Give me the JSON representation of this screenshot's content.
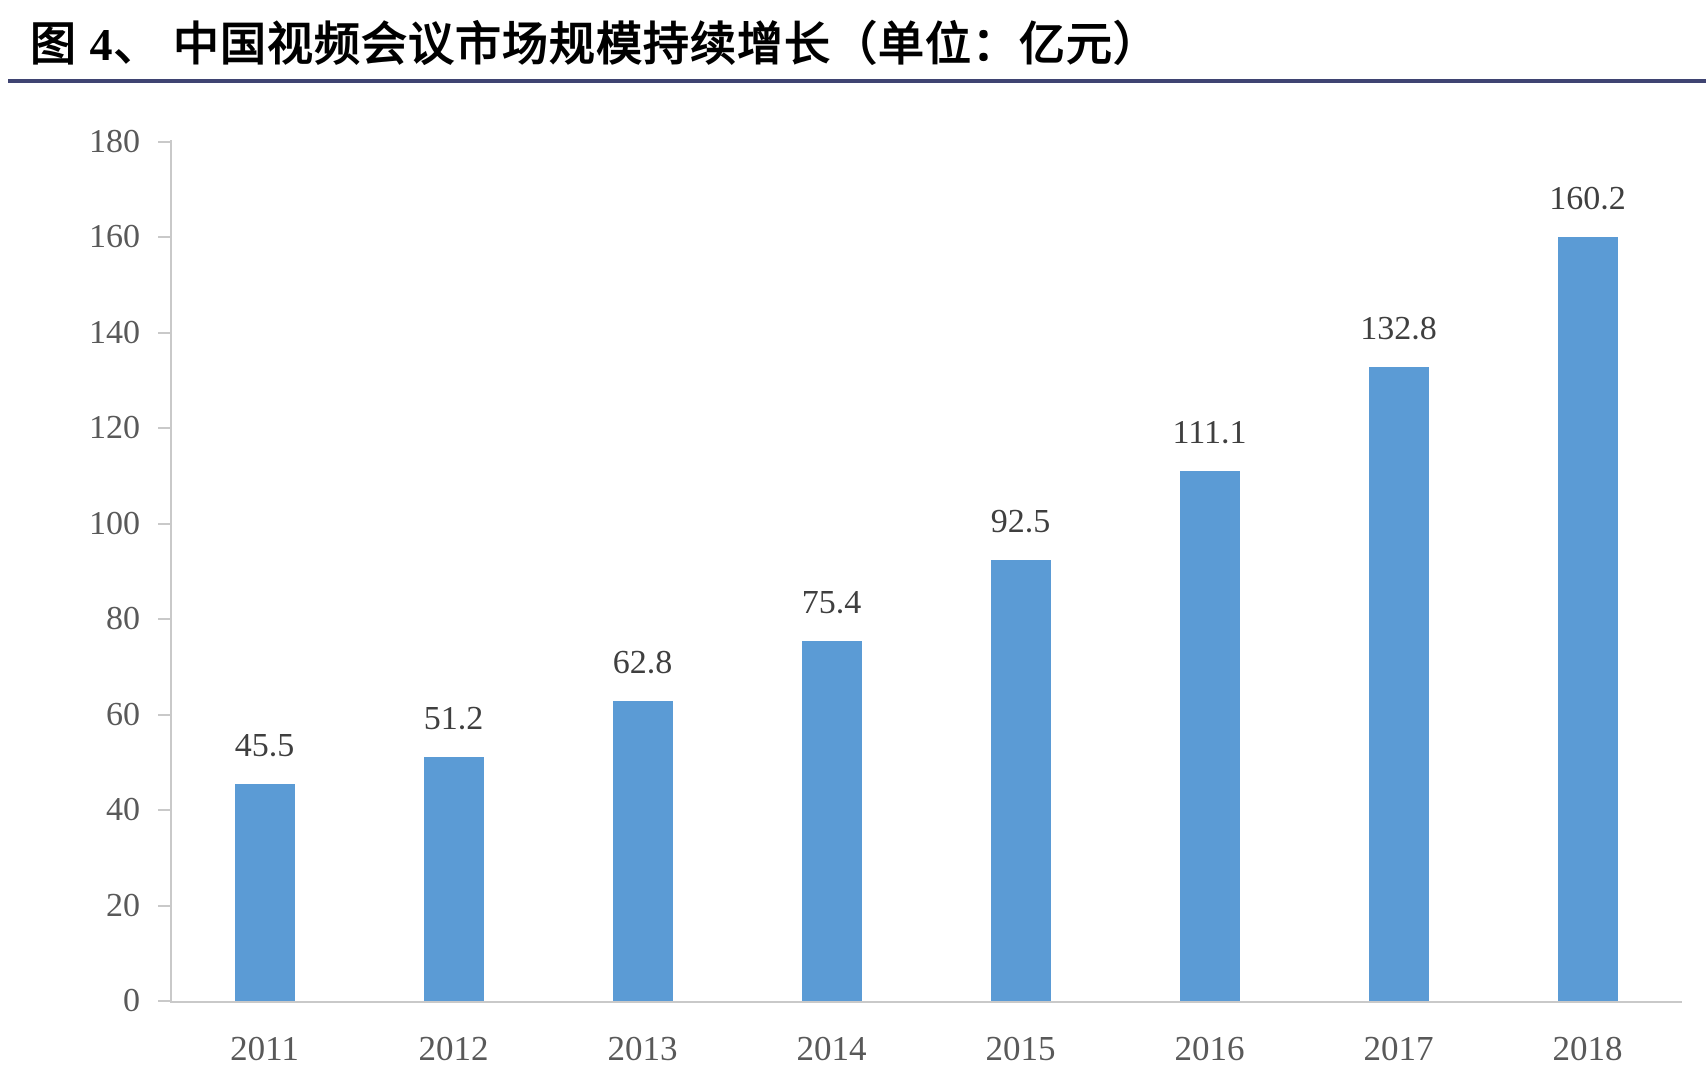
{
  "figure": {
    "title": "图 4、 中国视频会议市场规模持续增长（单位：亿元）"
  },
  "chart_data": {
    "type": "bar",
    "title": "图 4、 中国视频会议市场规模持续增长（单位：亿元）",
    "unit": "亿元",
    "categories": [
      "2011",
      "2012",
      "2013",
      "2014",
      "2015",
      "2016",
      "2017",
      "2018"
    ],
    "values": [
      45.5,
      51.2,
      62.8,
      75.4,
      92.5,
      111.1,
      132.8,
      160.2
    ],
    "value_labels": [
      "45.5",
      "51.2",
      "62.8",
      "75.4",
      "92.5",
      "111.1",
      "132.8",
      "160.2"
    ],
    "xlabel": "",
    "ylabel": "",
    "ylim": [
      0,
      180
    ],
    "yticks": [
      0,
      20,
      40,
      60,
      80,
      100,
      120,
      140,
      160,
      180
    ],
    "grid": false,
    "legend": "none",
    "bar_color": "#5b9bd5",
    "value_label_color": "#3f3f3f",
    "tick_label_color": "#595959",
    "axis_color": "#c9c9c9"
  },
  "colors": {
    "title_text": "#000000",
    "title_rule": "#3f4472",
    "background": "#ffffff"
  }
}
